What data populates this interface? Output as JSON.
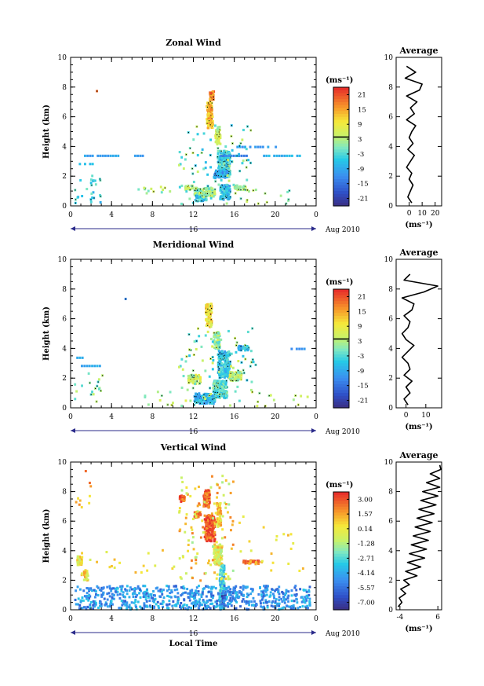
{
  "chart_data": [
    {
      "type": "heatmap",
      "title": "Zonal Wind",
      "ylabel": "Height (km)",
      "unit_label": "(ms⁻¹)",
      "xlim": [
        0,
        24
      ],
      "ylim": [
        0,
        10
      ],
      "xticks": [
        "0",
        "4",
        "8",
        "12",
        "16",
        "20",
        "0"
      ],
      "yticks": [
        "0",
        "2",
        "4",
        "6",
        "8",
        "10"
      ],
      "day_label": "16",
      "month_label": "Aug 2010",
      "colorbar_ticks": [
        "21",
        "15",
        "9",
        "3",
        "-3",
        "-9",
        "-15",
        "-21"
      ],
      "colorbar_range": [
        -24,
        24
      ],
      "blobs": [
        {
          "x": 13.5,
          "y": 6.2,
          "w": 0.6,
          "h": 1.8,
          "v": 14
        },
        {
          "x": 13.7,
          "y": 7.5,
          "w": 0.4,
          "h": 0.6,
          "v": 18
        },
        {
          "x": 14.3,
          "y": 4.8,
          "w": 0.5,
          "h": 1.2,
          "v": 5
        },
        {
          "x": 14.9,
          "y": 3.0,
          "w": 1.2,
          "h": 1.6,
          "v": -3
        },
        {
          "x": 15.0,
          "y": 1.0,
          "w": 1.0,
          "h": 1.0,
          "v": -6
        },
        {
          "x": 14.6,
          "y": 2.2,
          "w": 1.4,
          "h": 0.5,
          "v": -8
        },
        {
          "x": 16.5,
          "y": 1.3,
          "w": 1.2,
          "h": 0.3,
          "v": 4
        },
        {
          "x": 13.0,
          "y": 1.0,
          "w": 2.0,
          "h": 0.6,
          "v": 2
        },
        {
          "x": 12.6,
          "y": 0.6,
          "w": 1.2,
          "h": 0.4,
          "v": -4
        },
        {
          "x": 11.5,
          "y": 1.3,
          "w": 0.8,
          "h": 0.3,
          "v": 6
        }
      ],
      "strips": [
        {
          "x0": 1.3,
          "x1": 4.8,
          "y": 3.45,
          "v": -9
        },
        {
          "x0": 0.8,
          "x1": 2.2,
          "y": 2.9,
          "v": -6
        },
        {
          "x0": 6.2,
          "x1": 7.2,
          "y": 3.45,
          "v": -9
        },
        {
          "x0": 14.6,
          "x1": 17.2,
          "y": 3.45,
          "v": -12
        },
        {
          "x0": 18.8,
          "x1": 22.5,
          "y": 3.45,
          "v": -7
        },
        {
          "x0": 16.2,
          "x1": 20.0,
          "y": 4.05,
          "v": -10
        }
      ],
      "sparse": [
        {
          "x0": 0.3,
          "x1": 3.0,
          "y0": 0.2,
          "y1": 2.2,
          "n": 28,
          "v": -4,
          "spread": 8
        },
        {
          "x0": 6.5,
          "x1": 10.2,
          "y0": 0.8,
          "y1": 1.4,
          "n": 14,
          "v": 3,
          "spread": 8
        },
        {
          "x0": 17.0,
          "x1": 22.0,
          "y0": 0.2,
          "y1": 1.2,
          "n": 12,
          "v": 2,
          "spread": 8
        },
        {
          "x0": 10.5,
          "x1": 17.5,
          "y0": 0.2,
          "y1": 5.5,
          "n": 90,
          "v": 0,
          "spread": 14
        },
        {
          "x0": 2.3,
          "x1": 2.5,
          "y0": 7.7,
          "y1": 7.9,
          "n": 1,
          "v": 20,
          "spread": 1
        }
      ],
      "profile": {
        "xlim": [
          -10,
          25
        ],
        "xticks": [
          "0",
          "10",
          "20"
        ],
        "xtick_values": [
          0,
          10,
          20
        ],
        "y": [
          0.2,
          0.6,
          1.0,
          1.4,
          1.8,
          2.2,
          2.6,
          3.0,
          3.4,
          3.8,
          4.2,
          4.6,
          5.0,
          5.4,
          5.8,
          6.2,
          6.6,
          7.0,
          7.4,
          7.8,
          8.2,
          8.6,
          9.0,
          9.4
        ],
        "values": [
          2,
          -1,
          1,
          3,
          0,
          2,
          -2,
          1,
          4,
          -1,
          3,
          0,
          2,
          5,
          -2,
          4,
          1,
          6,
          -2,
          8,
          10,
          -3,
          5,
          -2
        ]
      }
    },
    {
      "type": "heatmap",
      "title": "Meridional Wind",
      "ylabel": "Height (km)",
      "unit_label": "(ms⁻¹)",
      "xlim": [
        0,
        24
      ],
      "ylim": [
        0,
        10
      ],
      "xticks": [
        "0",
        "4",
        "8",
        "12",
        "16",
        "20",
        "0"
      ],
      "yticks": [
        "0",
        "2",
        "4",
        "6",
        "8",
        "10"
      ],
      "day_label": "16",
      "month_label": "Aug 2010",
      "colorbar_ticks": [
        "21",
        "15",
        "9",
        "3",
        "-3",
        "-9",
        "-15",
        "-21"
      ],
      "colorbar_range": [
        -24,
        24
      ],
      "blobs": [
        {
          "x": 13.4,
          "y": 6.3,
          "w": 0.6,
          "h": 1.6,
          "v": 10
        },
        {
          "x": 14.2,
          "y": 4.6,
          "w": 0.6,
          "h": 1.2,
          "v": 2
        },
        {
          "x": 14.9,
          "y": 3.0,
          "w": 1.2,
          "h": 1.8,
          "v": -5
        },
        {
          "x": 14.5,
          "y": 1.3,
          "w": 1.4,
          "h": 1.2,
          "v": -2
        },
        {
          "x": 13.0,
          "y": 0.7,
          "w": 2.0,
          "h": 0.7,
          "v": -7
        },
        {
          "x": 16.0,
          "y": 2.2,
          "w": 1.2,
          "h": 0.6,
          "v": 4
        },
        {
          "x": 12.0,
          "y": 2.0,
          "w": 1.2,
          "h": 0.6,
          "v": 6
        },
        {
          "x": 16.8,
          "y": 4.1,
          "w": 1.0,
          "h": 0.3,
          "v": -6
        }
      ],
      "strips": [
        {
          "x0": 0.3,
          "x1": 1.3,
          "y": 3.45,
          "v": -9
        },
        {
          "x0": 1.0,
          "x1": 3.0,
          "y": 2.9,
          "v": -8
        },
        {
          "x0": 21.5,
          "x1": 23.0,
          "y": 4.05,
          "v": -10
        }
      ],
      "sparse": [
        {
          "x0": 0.3,
          "x1": 3.0,
          "y0": 0.2,
          "y1": 2.4,
          "n": 18,
          "v": 1,
          "spread": 10
        },
        {
          "x0": 5.5,
          "x1": 10.0,
          "y0": 0.2,
          "y1": 1.5,
          "n": 10,
          "v": 4,
          "spread": 8
        },
        {
          "x0": 10.5,
          "x1": 18.0,
          "y0": 0.2,
          "y1": 5.5,
          "n": 90,
          "v": 1,
          "spread": 14
        },
        {
          "x0": 18.0,
          "x1": 23.5,
          "y0": 0.2,
          "y1": 1.2,
          "n": 12,
          "v": 3,
          "spread": 8
        },
        {
          "x0": 5.1,
          "x1": 5.3,
          "y0": 7.4,
          "y1": 7.6,
          "n": 1,
          "v": -12,
          "spread": 1
        }
      ],
      "profile": {
        "xlim": [
          -5,
          18
        ],
        "xticks": [
          "0",
          "10"
        ],
        "xtick_values": [
          0,
          10
        ],
        "y": [
          0.2,
          0.6,
          1.0,
          1.4,
          1.8,
          2.2,
          2.6,
          3.0,
          3.4,
          3.8,
          4.2,
          4.6,
          5.0,
          5.4,
          5.8,
          6.2,
          6.6,
          7.0,
          7.4,
          7.8,
          8.2,
          8.6,
          9.0
        ],
        "values": [
          1,
          -1,
          2,
          0,
          3,
          -1,
          2,
          1,
          -2,
          1,
          4,
          0,
          -2,
          1,
          2,
          -1,
          3,
          4,
          -2,
          9,
          16,
          -1,
          2
        ]
      }
    },
    {
      "type": "heatmap",
      "title": "Vertical Wind",
      "ylabel": "Height (km)",
      "xlabel": "Local Time",
      "unit_label": "(ms⁻¹)",
      "xlim": [
        0,
        24
      ],
      "ylim": [
        0,
        10
      ],
      "xticks": [
        "0",
        "4",
        "8",
        "12",
        "16",
        "20",
        "0"
      ],
      "yticks": [
        "0",
        "2",
        "4",
        "6",
        "8",
        "10"
      ],
      "day_label": "16",
      "month_label": "Aug 2010",
      "colorbar_ticks": [
        "3.00",
        "1.57",
        "0.14",
        "-1.28",
        "-2.71",
        "-4.14",
        "-5.57",
        "-7.00"
      ],
      "colorbar_range": [
        -7.7,
        3.7
      ],
      "blobs": [
        {
          "x": 13.5,
          "y": 5.6,
          "w": 1.0,
          "h": 1.8,
          "v": 3
        },
        {
          "x": 13.2,
          "y": 7.6,
          "w": 0.6,
          "h": 1.2,
          "v": 2.5
        },
        {
          "x": 14.4,
          "y": 6.5,
          "w": 0.4,
          "h": 1.6,
          "v": 1
        },
        {
          "x": 14.3,
          "y": 3.8,
          "w": 0.8,
          "h": 1.4,
          "v": 0
        },
        {
          "x": 14.7,
          "y": 1.6,
          "w": 0.5,
          "h": 3.0,
          "v": -3
        },
        {
          "x": 14.9,
          "y": 0.8,
          "w": 0.4,
          "h": 0.9,
          "v": -6
        },
        {
          "x": 12.3,
          "y": 6.5,
          "w": 0.6,
          "h": 0.4,
          "v": 3
        },
        {
          "x": 17.5,
          "y": 3.3,
          "w": 1.6,
          "h": 0.25,
          "v": 2.5
        },
        {
          "x": 10.8,
          "y": 7.6,
          "w": 0.5,
          "h": 0.4,
          "v": 3
        },
        {
          "x": 0.8,
          "y": 3.4,
          "w": 0.5,
          "h": 0.6,
          "v": 0.2
        },
        {
          "x": 1.4,
          "y": 2.4,
          "w": 0.4,
          "h": 0.7,
          "v": 0.5
        }
      ],
      "strips": [],
      "sparse": [
        {
          "x0": 0.3,
          "x1": 23.3,
          "y0": 0.1,
          "y1": 1.7,
          "n": 700,
          "v": -4.5,
          "spread": 3
        },
        {
          "x0": 0.5,
          "x1": 10.5,
          "y0": 2.3,
          "y1": 4.2,
          "n": 20,
          "v": 0.5,
          "spread": 2
        },
        {
          "x0": 16.0,
          "x1": 23.0,
          "y0": 2.3,
          "y1": 6.5,
          "n": 22,
          "v": 0.8,
          "spread": 2
        },
        {
          "x0": 0.3,
          "x1": 2.5,
          "y0": 7.0,
          "y1": 9.8,
          "n": 10,
          "v": 1.5,
          "spread": 3
        },
        {
          "x0": 10.5,
          "x1": 15.8,
          "y0": 2.0,
          "y1": 9.2,
          "n": 120,
          "v": 0.5,
          "spread": 4
        }
      ],
      "profile": {
        "xlim": [
          -5,
          7
        ],
        "xticks": [
          "-4",
          "6"
        ],
        "xtick_values": [
          -4,
          6
        ],
        "y": [
          0.2,
          0.5,
          0.8,
          1.1,
          1.4,
          1.7,
          2.0,
          2.3,
          2.6,
          2.9,
          3.2,
          3.5,
          3.8,
          4.1,
          4.4,
          4.7,
          5.0,
          5.3,
          5.6,
          5.9,
          6.2,
          6.5,
          6.8,
          7.1,
          7.4,
          7.7,
          8.0,
          8.3,
          8.6,
          8.9,
          9.2,
          9.5,
          9.8
        ],
        "values": [
          -4.5,
          -3.5,
          -4.2,
          -2.5,
          -3.8,
          -1.5,
          -3.0,
          0.5,
          -2.5,
          1.5,
          -2.0,
          2.5,
          -1.5,
          3.0,
          -1.0,
          3.5,
          -0.5,
          4.0,
          0.0,
          4.5,
          0.5,
          5.0,
          1.0,
          5.5,
          1.5,
          6.0,
          2.0,
          6.5,
          3.0,
          6.5,
          4.0,
          6.8,
          6.5
        ]
      }
    }
  ]
}
